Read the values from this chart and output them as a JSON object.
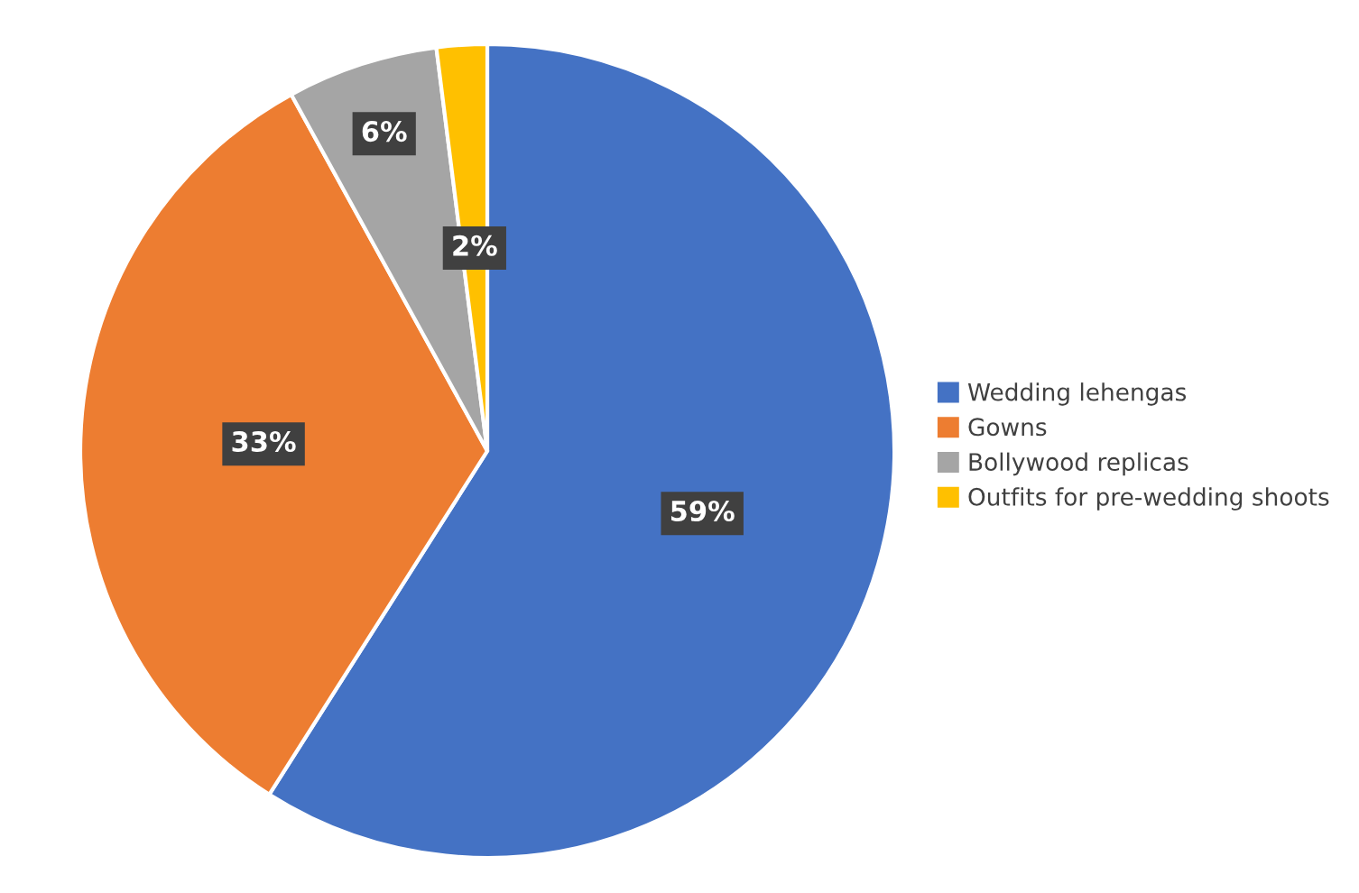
{
  "chart_data": {
    "type": "pie",
    "categories": [
      "Wedding lehengas",
      "Gowns",
      "Bollywood replicas",
      "Outfits for pre-wedding shoots"
    ],
    "values": [
      59,
      33,
      6,
      2
    ],
    "colors": [
      "#4472c4",
      "#ed7d31",
      "#a5a5a5",
      "#ffc000"
    ],
    "value_labels": [
      "59%",
      "33%",
      "6%",
      "2%"
    ],
    "legend": "right"
  }
}
